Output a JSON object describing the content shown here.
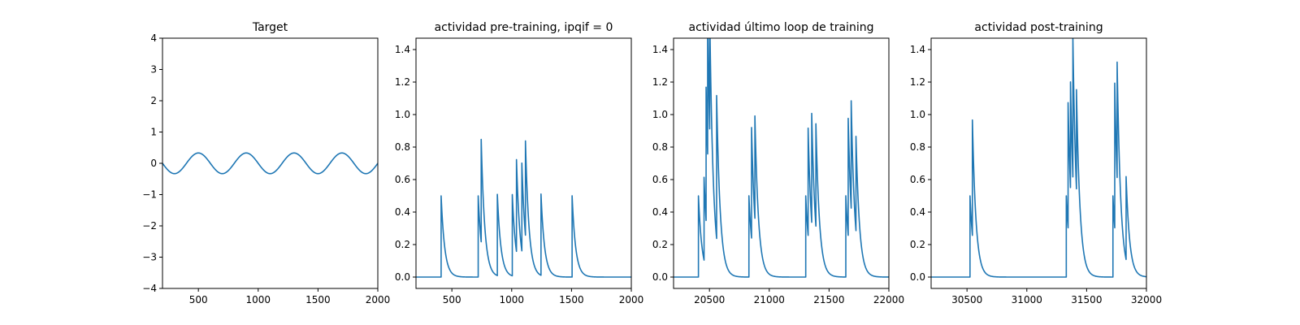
{
  "figure": {
    "background": "#ffffff",
    "line_color": "#1f77b4"
  },
  "chart_data": [
    {
      "type": "line",
      "title": "Target",
      "xlabel": "",
      "ylabel": "",
      "xlim": [
        200,
        2000
      ],
      "ylim": [
        -4,
        4
      ],
      "xticks": [
        500,
        1000,
        1500,
        2000
      ],
      "xtick_labels": [
        "500",
        "1000",
        "1500",
        "2000"
      ],
      "yticks": [
        -4,
        -3,
        -2,
        -1,
        0,
        1,
        2,
        3,
        4
      ],
      "ytick_labels": [
        "−4",
        "−3",
        "−2",
        "−1",
        "0",
        "1",
        "2",
        "3",
        "4"
      ],
      "signal": {
        "kind": "sine",
        "amplitude": 0.33,
        "period": 400,
        "phase_x": 200,
        "negative_first": true
      },
      "series": [
        {
          "name": "target",
          "color": "#1f77b4"
        }
      ]
    },
    {
      "type": "line",
      "title": "actividad pre-training, ipqif = 0",
      "xlabel": "",
      "ylabel": "",
      "xlim": [
        200,
        2000
      ],
      "ylim": [
        -0.07,
        1.47
      ],
      "xticks": [
        500,
        1000,
        1500,
        2000
      ],
      "xtick_labels": [
        "500",
        "1000",
        "1500",
        "2000"
      ],
      "yticks": [
        0,
        0.2,
        0.4,
        0.6,
        0.8,
        1.0,
        1.2,
        1.4
      ],
      "ytick_labels": [
        "0.0",
        "0.2",
        "0.4",
        "0.6",
        "0.8",
        "1.0",
        "1.2",
        "1.4"
      ],
      "signal": {
        "kind": "spikes",
        "decay": 30,
        "baseline": 0,
        "spikes": [
          [
            410,
            0.5
          ],
          [
            720,
            0.5
          ],
          [
            745,
            0.63
          ],
          [
            880,
            0.5
          ],
          [
            1005,
            0.5
          ],
          [
            1040,
            0.565
          ],
          [
            1085,
            0.54
          ],
          [
            1115,
            0.58
          ],
          [
            1245,
            0.5
          ],
          [
            1505,
            0.5
          ]
        ]
      },
      "series": [
        {
          "name": "actividad",
          "color": "#1f77b4"
        }
      ]
    },
    {
      "type": "line",
      "title": "actividad último loop de training",
      "xlabel": "",
      "ylabel": "",
      "xlim": [
        20200,
        22000
      ],
      "ylim": [
        -0.07,
        1.47
      ],
      "xticks": [
        20500,
        21000,
        21500,
        22000
      ],
      "xtick_labels": [
        "20500",
        "21000",
        "21500",
        "22000"
      ],
      "yticks": [
        0,
        0.2,
        0.4,
        0.6,
        0.8,
        1.0,
        1.2,
        1.4
      ],
      "ytick_labels": [
        "0.0",
        "0.2",
        "0.4",
        "0.6",
        "0.8",
        "1.0",
        "1.2",
        "1.4"
      ],
      "signal": {
        "kind": "spikes",
        "decay": 30,
        "baseline": 0,
        "spikes": [
          [
            20408,
            0.5
          ],
          [
            20455,
            0.51
          ],
          [
            20472,
            0.82
          ],
          [
            20485,
            0.85
          ],
          [
            20502,
            0.73
          ],
          [
            20560,
            0.88
          ],
          [
            20830,
            0.5
          ],
          [
            20852,
            0.68
          ],
          [
            20880,
            0.63
          ],
          [
            21305,
            0.5
          ],
          [
            21325,
            0.66
          ],
          [
            21355,
            0.67
          ],
          [
            21390,
            0.63
          ],
          [
            21640,
            0.5
          ],
          [
            21660,
            0.72
          ],
          [
            21685,
            0.66
          ],
          [
            21725,
            0.58
          ]
        ]
      },
      "series": [
        {
          "name": "actividad",
          "color": "#1f77b4"
        }
      ]
    },
    {
      "type": "line",
      "title": "actividad post-training",
      "xlabel": "",
      "ylabel": "",
      "xlim": [
        30200,
        32000
      ],
      "ylim": [
        -0.07,
        1.47
      ],
      "xticks": [
        30500,
        31000,
        31500,
        32000
      ],
      "xtick_labels": [
        "30500",
        "31000",
        "31500",
        "32000"
      ],
      "yticks": [
        0,
        0.2,
        0.4,
        0.6,
        0.8,
        1.0,
        1.2,
        1.4
      ],
      "ytick_labels": [
        "0.0",
        "0.2",
        "0.4",
        "0.6",
        "0.8",
        "1.0",
        "1.2",
        "1.4"
      ],
      "signal": {
        "kind": "spikes",
        "decay": 30,
        "baseline": 0,
        "spikes": [
          [
            30525,
            0.5
          ],
          [
            30545,
            0.71
          ],
          [
            31330,
            0.5
          ],
          [
            31345,
            0.77
          ],
          [
            31365,
            0.65
          ],
          [
            31385,
            0.86
          ],
          [
            31415,
            0.61
          ],
          [
            31720,
            0.5
          ],
          [
            31735,
            0.89
          ],
          [
            31755,
            0.71
          ],
          [
            31830,
            0.51
          ]
        ]
      },
      "series": [
        {
          "name": "actividad",
          "color": "#1f77b4"
        }
      ]
    }
  ]
}
